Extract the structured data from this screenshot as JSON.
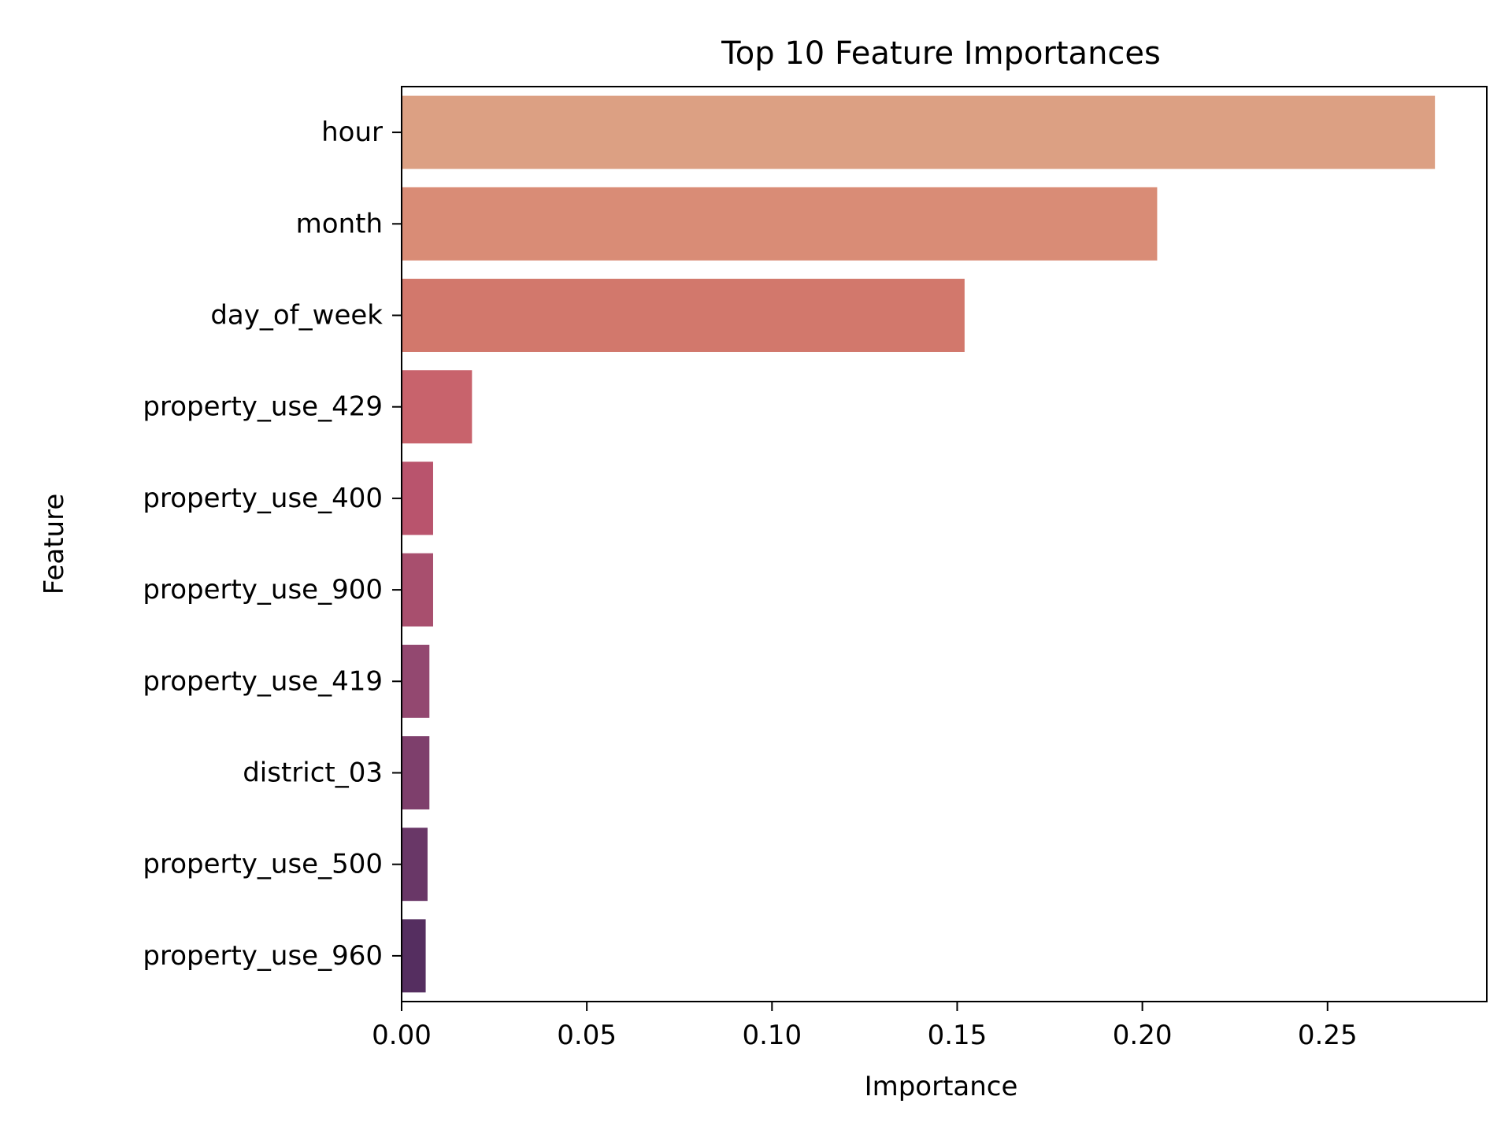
{
  "chart_data": {
    "type": "bar",
    "orientation": "horizontal",
    "title": "Top 10 Feature Importances",
    "xlabel": "Importance",
    "ylabel": "Feature",
    "categories": [
      "hour",
      "month",
      "day_of_week",
      "property_use_429",
      "property_use_400",
      "property_use_900",
      "property_use_419",
      "district_03",
      "property_use_500",
      "property_use_960"
    ],
    "values": [
      0.279,
      0.204,
      0.152,
      0.019,
      0.0085,
      0.0085,
      0.0075,
      0.0075,
      0.007,
      0.0065
    ],
    "colors": [
      "#dca083",
      "#d98c76",
      "#d2786c",
      "#c8636c",
      "#b9546d",
      "#a84f6e",
      "#934870",
      "#7e3f6c",
      "#693767",
      "#552e60"
    ],
    "xlim": [
      0,
      0.293
    ],
    "xticks": [
      0.0,
      0.05,
      0.1,
      0.15,
      0.2,
      0.25
    ],
    "xtick_labels": [
      "0.00",
      "0.05",
      "0.10",
      "0.15",
      "0.20",
      "0.25"
    ],
    "grid": false,
    "legend": "none"
  }
}
